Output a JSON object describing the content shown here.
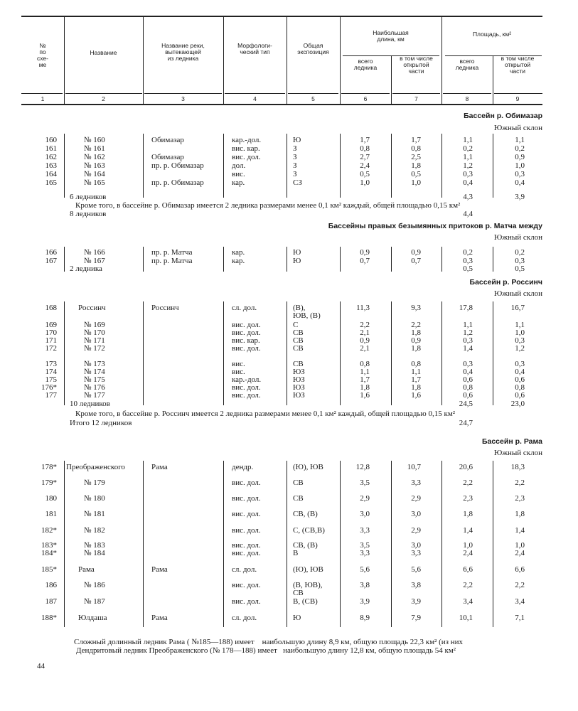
{
  "header": {
    "col1": "№\nпо\nсхе-\nме",
    "col2": "Название",
    "col3": "Название реки,\nвытекающей\nиз ледника",
    "col4": "Морфологи-\nческий тип",
    "col5": "Общая\nэкспозиция",
    "length_group": "Наибольшая\nдлина, км",
    "area_group": "Площадь, км²",
    "col6": "всего\nледника",
    "col7": "в том числе\nоткрытой\nчасти",
    "col8": "всего\nледника",
    "col9": "в том числе\nоткрытой\nчасти",
    "numbers": [
      "1",
      "2",
      "3",
      "4",
      "5",
      "6",
      "7",
      "8",
      "9"
    ]
  },
  "sections": [
    {
      "title": "Бассейн р. Обимазар",
      "slope": "Южный склон",
      "rows": [
        {
          "num": "160",
          "name": "№ 160",
          "river": "Обимазар",
          "type": "кар.-дол.",
          "expo": "Ю",
          "len_total": "1,7",
          "len_open": "1,7",
          "area_total": "1,1",
          "area_open": "1,1"
        },
        {
          "num": "161",
          "name": "№ 161",
          "river": "",
          "type": "вис. кар.",
          "expo": "З",
          "len_total": "0,8",
          "len_open": "0,8",
          "area_total": "0,2",
          "area_open": "0,2"
        },
        {
          "num": "162",
          "name": "№ 162",
          "river": "Обимазар",
          "type": "вис. дол.",
          "expo": "З",
          "len_total": "2,7",
          "len_open": "2,5",
          "area_total": "1,1",
          "area_open": "0,9"
        },
        {
          "num": "163",
          "name": "№ 163",
          "river": "пр. р. Обимазар",
          "type": "дол.",
          "expo": "З",
          "len_total": "2,4",
          "len_open": "1,8",
          "area_total": "1,2",
          "area_open": "1,0"
        },
        {
          "num": "164",
          "name": "№ 164",
          "river": "",
          "type": "вис.",
          "expo": "З",
          "len_total": "0,5",
          "len_open": "0,5",
          "area_total": "0,3",
          "area_open": "0,3"
        },
        {
          "num": "165",
          "name": "№ 165",
          "river": "пр. р. Обимазар",
          "type": "кар.",
          "expo": "СЗ",
          "len_total": "1,0",
          "len_open": "1,0",
          "area_total": "0,4",
          "area_open": "0,4"
        }
      ],
      "subtotal": {
        "label": "6 ледников",
        "area_total": "4,3",
        "area_open": "3,9"
      },
      "note": "Кроме того, в бассейне р. Обимазар имеется 2 ледника размерами менее 0,1 км² каждый, общей площадью 0,15 км²",
      "total": {
        "label": "8 ледников",
        "area": "4,4"
      }
    },
    {
      "title": "Бассейны правых безымянных притоков р. Матча между",
      "slope": "Южный склон",
      "rows": [
        {
          "num": "166",
          "name": "№ 166",
          "river": "пр. р. Матча",
          "type": "кар.",
          "expo": "Ю",
          "len_total": "0,9",
          "len_open": "0,9",
          "area_total": "0,2",
          "area_open": "0,2"
        },
        {
          "num": "167",
          "name": "№ 167",
          "river": "пр. р. Матча",
          "type": "кар.",
          "expo": "Ю",
          "len_total": "0,7",
          "len_open": "0,7",
          "area_total": "0,3",
          "area_open": "0,3"
        }
      ],
      "subtotal": {
        "label": "2 ледника",
        "area_total": "0,5",
        "area_open": "0,5"
      }
    },
    {
      "title": "Бассейн р. Россинч",
      "slope": "Южный склон",
      "rows": [
        {
          "num": "168",
          "name": "Россинч",
          "river": "Россинч",
          "type": "сл. дол.",
          "expo": "(В),\nЮВ, (В)",
          "len_total": "11,3",
          "len_open": "9,3",
          "area_total": "17,8",
          "area_open": "16,7"
        },
        {
          "num": "169",
          "name": "№ 169",
          "river": "",
          "type": "вис. дол.",
          "expo": "С",
          "len_total": "2,2",
          "len_open": "2,2",
          "area_total": "1,1",
          "area_open": "1,1"
        },
        {
          "num": "170",
          "name": "№ 170",
          "river": "",
          "type": "вис. дол.",
          "expo": "СВ",
          "len_total": "2,1",
          "len_open": "1,8",
          "area_total": "1,2",
          "area_open": "1,0"
        },
        {
          "num": "171",
          "name": "№ 171",
          "river": "",
          "type": "вис. кар.",
          "expo": "СВ",
          "len_total": "0,9",
          "len_open": "0,9",
          "area_total": "0,3",
          "area_open": "0,3"
        },
        {
          "num": "172",
          "name": "№ 172",
          "river": "",
          "type": "вис. дол.",
          "expo": "СВ",
          "len_total": "2,1",
          "len_open": "1,8",
          "area_total": "1,4",
          "area_open": "1,2"
        },
        {
          "num": "173",
          "name": "№ 173",
          "river": "",
          "type": "вис.",
          "expo": "СВ",
          "len_total": "0,8",
          "len_open": "0,8",
          "area_total": "0,3",
          "area_open": "0,3"
        },
        {
          "num": "174",
          "name": "№ 174",
          "river": "",
          "type": "вис.",
          "expo": "ЮЗ",
          "len_total": "1,1",
          "len_open": "1,1",
          "area_total": "0,4",
          "area_open": "0,4"
        },
        {
          "num": "175",
          "name": "№ 175",
          "river": "",
          "type": "кар.-дол.",
          "expo": "ЮЗ",
          "len_total": "1,7",
          "len_open": "1,7",
          "area_total": "0,6",
          "area_open": "0,6"
        },
        {
          "num": "176*",
          "name": "№ 176",
          "river": "",
          "type": "вис. дол.",
          "expo": "ЮЗ",
          "len_total": "1,8",
          "len_open": "1,8",
          "area_total": "0,8",
          "area_open": "0,8"
        },
        {
          "num": "177",
          "name": "№ 177",
          "river": "",
          "type": "вис. дол.",
          "expo": "ЮЗ",
          "len_total": "1,6",
          "len_open": "1,6",
          "area_total": "0,6",
          "area_open": "0,6"
        }
      ],
      "subtotal": {
        "label": "10 ледников",
        "area_total": "24,5",
        "area_open": "23,0"
      },
      "note": "Кроме того, в бассейне р. Россинч имеется 2 ледника размерами менее 0,1 км² каждый, общей площадью 0,15 км²",
      "total": {
        "label": "Итого 12 ледников",
        "area": "24,7"
      }
    },
    {
      "title": "Бассейн р. Рама",
      "slope": "Южный склон",
      "rows": [
        {
          "num": "178*",
          "name": "Преображенского",
          "river": "Рама",
          "type": "дендр.",
          "expo": "(Ю), ЮВ",
          "len_total": "12,8",
          "len_open": "10,7",
          "area_total": "20,6",
          "area_open": "18,3"
        },
        {
          "num": "179*",
          "name": "№ 179",
          "river": "",
          "type": "вис. дол.",
          "expo": "СВ",
          "len_total": "3,5",
          "len_open": "3,3",
          "area_total": "2,2",
          "area_open": "2,2"
        },
        {
          "num": "180",
          "name": "№ 180",
          "river": "",
          "type": "вис. дол.",
          "expo": "СВ",
          "len_total": "2,9",
          "len_open": "2,9",
          "area_total": "2,3",
          "area_open": "2,3"
        },
        {
          "num": "181",
          "name": "№ 181",
          "river": "",
          "type": "вис. дол.",
          "expo": "СВ, (В)",
          "len_total": "3,0",
          "len_open": "3,0",
          "area_total": "1,8",
          "area_open": "1,8"
        },
        {
          "num": "182*",
          "name": "№ 182",
          "river": "",
          "type": "вис. дол.",
          "expo": "С, (СВ,В)",
          "len_total": "3,3",
          "len_open": "2,9",
          "area_total": "1,4",
          "area_open": "1,4"
        },
        {
          "num": "183*",
          "name": "№ 183",
          "river": "",
          "type": "вис. дол.",
          "expo": "СВ, (В)",
          "len_total": "3,5",
          "len_open": "3,0",
          "area_total": "1,0",
          "area_open": "1,0"
        },
        {
          "num": "184*",
          "name": "№ 184",
          "river": "",
          "type": "вис. дол.",
          "expo": "В",
          "len_total": "3,3",
          "len_open": "3,3",
          "area_total": "2,4",
          "area_open": "2,4"
        },
        {
          "num": "185*",
          "name": "Рама",
          "river": "Рама",
          "type": "сл. дол.",
          "expo": "(Ю), ЮВ",
          "len_total": "5,6",
          "len_open": "5,6",
          "area_total": "6,6",
          "area_open": "6,6"
        },
        {
          "num": "186",
          "name": "№ 186",
          "river": "",
          "type": "вис. дол.",
          "expo": "(В, ЮВ),\nСВ",
          "len_total": "3,8",
          "len_open": "3,8",
          "area_total": "2,2",
          "area_open": "2,2"
        },
        {
          "num": "187",
          "name": "№ 187",
          "river": "",
          "type": "вис. дол.",
          "expo": "В, (СВ)",
          "len_total": "3,9",
          "len_open": "3,9",
          "area_total": "3,4",
          "area_open": "3,4"
        },
        {
          "num": "188*",
          "name": "Юлдаша",
          "river": "Рама",
          "type": "сл. дол.",
          "expo": "Ю",
          "len_total": "8,9",
          "len_open": "7,9",
          "area_total": "10,1",
          "area_open": "7,1"
        }
      ],
      "notes": [
        "Сложный долинный ледник Рама ( №185—188) имеет    наибольшую длину 8,9 км, общую площадь 22,3 км² (из них",
        "Дендритовый ледник Преображенского (№ 178—188) имеет   наибольшую длину 12,8 км, общую площадь 54 км²"
      ]
    }
  ],
  "page_number": "44"
}
